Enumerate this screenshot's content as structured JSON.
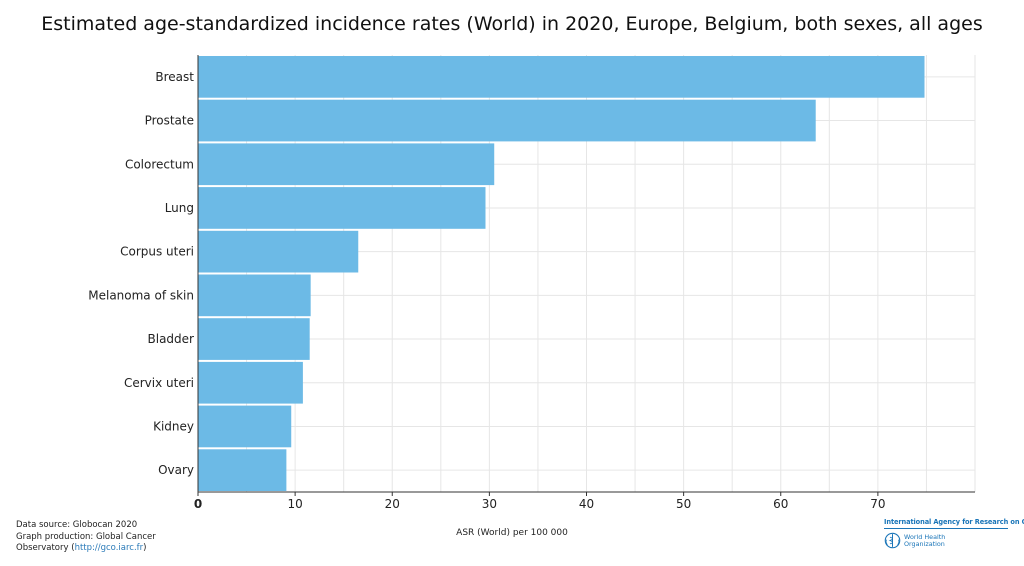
{
  "chart_data": {
    "type": "bar",
    "orientation": "horizontal",
    "title": "Estimated age-standardized incidence rates (World) in 2020, Europe, Belgium, both sexes, all ages",
    "categories": [
      "Breast",
      "Prostate",
      "Colorectum",
      "Lung",
      "Corpus uteri",
      "Melanoma of skin",
      "Bladder",
      "Cervix uteri",
      "Kidney",
      "Ovary"
    ],
    "values": [
      74.8,
      63.6,
      30.5,
      29.6,
      16.5,
      11.6,
      11.5,
      10.8,
      9.6,
      9.1
    ],
    "xlabel": "ASR (World) per 100 000",
    "ylabel": "",
    "xlim": [
      0,
      80
    ],
    "xticks": [
      0,
      10,
      20,
      30,
      40,
      50,
      60,
      70
    ],
    "grid": true,
    "legend": "none",
    "bar_color": "#6cbae6"
  },
  "footer": {
    "line1": "Data source: Globocan 2020",
    "line2": "Graph production: Global Cancer",
    "line3_prefix": "Observatory (",
    "line3_url": "http://gco.iarc.fr",
    "line3_suffix": ")"
  },
  "logos": {
    "iarc": "International Agency for Research on Cancer",
    "who_line1": "World Health",
    "who_line2": "Organization",
    "who_icon": "who-emblem-icon"
  },
  "colors": {
    "accent": "#1a75b8",
    "grid": "#e6e6e6"
  }
}
